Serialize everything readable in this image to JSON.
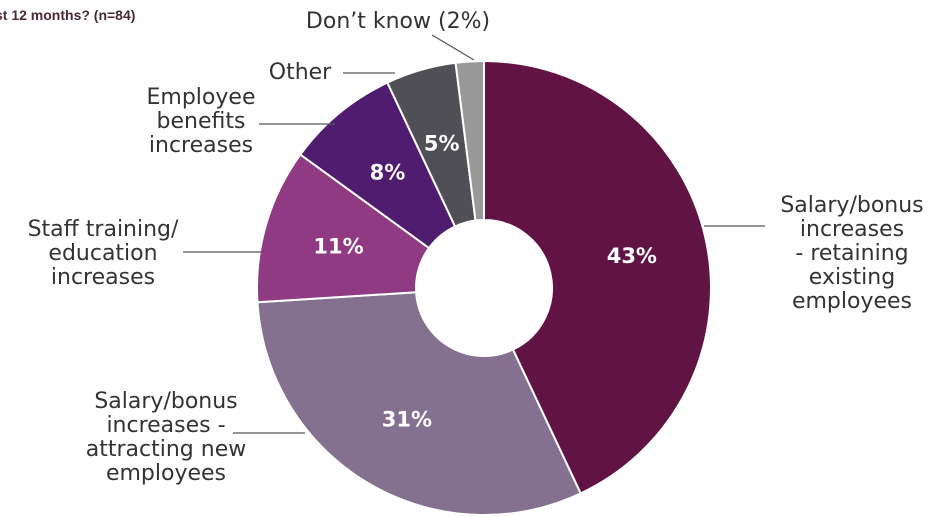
{
  "chart_data": {
    "type": "pie",
    "title": "st 12 months? (n=84)",
    "donut": true,
    "categories": [
      "Salary/bonus increases - retaining existing employees",
      "Salary/bonus increases - attracting new employees",
      "Staff training/ education increases",
      "Employee benefits increases",
      "Other",
      "Don’t know (2%)"
    ],
    "values": [
      43,
      31,
      11,
      8,
      5,
      2
    ],
    "value_labels": [
      "43%",
      "31%",
      "11%",
      "8%",
      "5%",
      ""
    ],
    "label_lines": [
      [
        "Salary/bonus",
        "increases",
        "- retaining",
        "existing",
        "employees"
      ],
      [
        "Salary/bonus",
        "increases -",
        "attracting new",
        "employees"
      ],
      [
        "Staff training/",
        "education",
        "increases"
      ],
      [
        "Employee",
        "benefits",
        "increases"
      ],
      [
        "Other"
      ],
      [
        "Don’t know (2%)"
      ]
    ],
    "colors": [
      "#611443",
      "#84708f",
      "#8f3a82",
      "#4f1c6f",
      "#4f4f55",
      "#999999"
    ],
    "value_label_colors": [
      "#ffffff",
      "#ffffff",
      "#ffffff",
      "#ffffff",
      "#ffffff",
      "#ffffff"
    ]
  }
}
